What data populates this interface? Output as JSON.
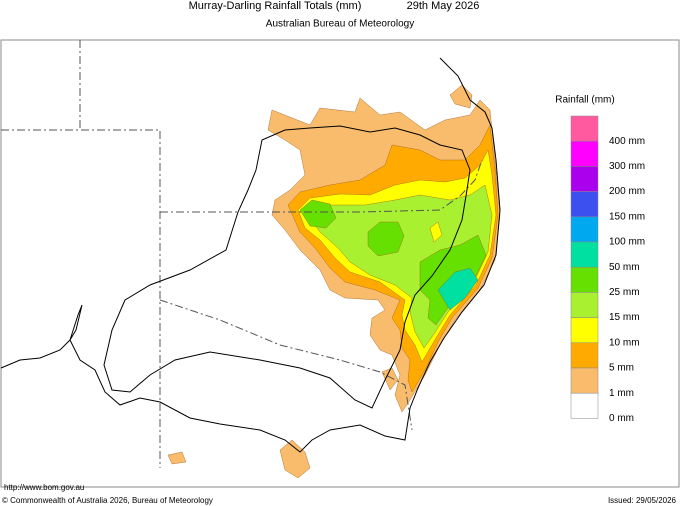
{
  "header": {
    "title": "Murray-Darling Rainfall Totals (mm)",
    "date": "29th May 2026",
    "subtitle": "Australian Bureau of Meteorology"
  },
  "legend": {
    "title": "Rainfall (mm)",
    "colors": [
      "#ff5aa0",
      "#ff00ff",
      "#aa00ee",
      "#3c50f0",
      "#00a8f0",
      "#00e0a0",
      "#66e000",
      "#a8f030",
      "#ffff00",
      "#ffaa00",
      "#f8bc6c",
      "#ffffff"
    ],
    "labels": [
      "400 mm",
      "300 mm",
      "200 mm",
      "150 mm",
      "100 mm",
      "50 mm",
      "25 mm",
      "15 mm",
      "10 mm",
      "5 mm",
      "1 mm",
      "0 mm"
    ]
  },
  "footer": {
    "url": "http://www.bom.gov.au",
    "copyright": "© Commonwealth of Australia 2026, Bureau of Meteorology",
    "issued": "Issued: 29/05/2026"
  }
}
